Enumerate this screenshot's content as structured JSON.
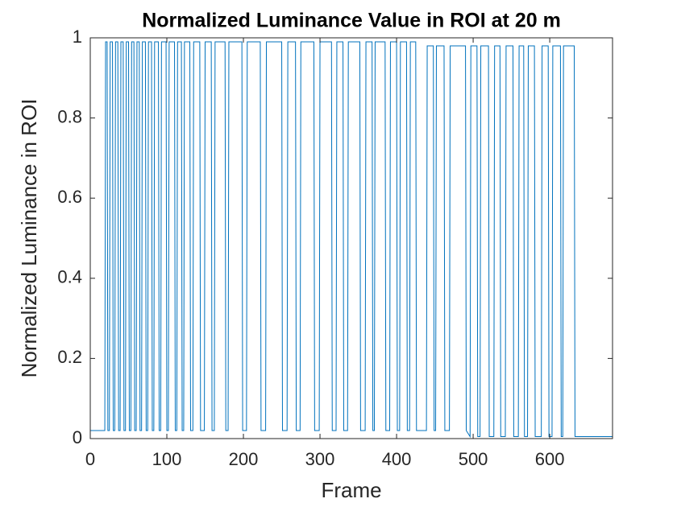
{
  "chart_data": {
    "type": "line",
    "title": "Normalized Luminance Value in ROI  at 20 m",
    "x_label": "Frame",
    "y_label": "Normalized Luminance in ROI",
    "xlim": [
      0,
      682
    ],
    "ylim": [
      0,
      1
    ],
    "xticks": [
      0,
      100,
      200,
      300,
      400,
      500,
      600
    ],
    "yticks": [
      0,
      0.2,
      0.4,
      0.6,
      0.8,
      1
    ],
    "grid": false,
    "series": [
      {
        "color": "#0072BD",
        "x": [
          0,
          19,
          20,
          22,
          23,
          25,
          26,
          29,
          30,
          32,
          33,
          36,
          37,
          39,
          40,
          43,
          44,
          46,
          47,
          50,
          51,
          53,
          54,
          57,
          58,
          60,
          61,
          64,
          65,
          67,
          68,
          72,
          73,
          75,
          76,
          80,
          81,
          83,
          84,
          89,
          90,
          92,
          93,
          99,
          100,
          102,
          103,
          110,
          111,
          113,
          114,
          119,
          120,
          122,
          123,
          130,
          131,
          134,
          135,
          143,
          144,
          149,
          150,
          158,
          159,
          162,
          163,
          176,
          177,
          180,
          181,
          198,
          199,
          204,
          205,
          222,
          223,
          229,
          230,
          250,
          251,
          257,
          258,
          268,
          269,
          274,
          275,
          292,
          293,
          299,
          300,
          315,
          316,
          321,
          322,
          330,
          331,
          336,
          337,
          352,
          353,
          359,
          360,
          368,
          369,
          371,
          372,
          385,
          386,
          391,
          392,
          400,
          401,
          404,
          405,
          413,
          414,
          417,
          418,
          425,
          426,
          439,
          440,
          448,
          449,
          451,
          452,
          462,
          463,
          469,
          470,
          490,
          491,
          496,
          497,
          505,
          506,
          509,
          510,
          520,
          521,
          527,
          528,
          535,
          536,
          542,
          543,
          552,
          553,
          559,
          560,
          566,
          567,
          571,
          572,
          580,
          581,
          589,
          590,
          598,
          599,
          603,
          604,
          614,
          615,
          617,
          618,
          632,
          633,
          682
        ],
        "values": [
          0.02,
          0.02,
          0.99,
          0.99,
          0.02,
          0.02,
          0.99,
          0.99,
          0.02,
          0.02,
          0.99,
          0.99,
          0.02,
          0.02,
          0.99,
          0.99,
          0.02,
          0.02,
          0.99,
          0.99,
          0.02,
          0.02,
          0.99,
          0.99,
          0.02,
          0.02,
          0.99,
          0.99,
          0.02,
          0.02,
          0.99,
          0.99,
          0.02,
          0.02,
          0.99,
          0.99,
          0.02,
          0.02,
          0.99,
          0.99,
          0.02,
          0.02,
          0.99,
          0.99,
          0.02,
          0.02,
          0.99,
          0.99,
          0.02,
          0.02,
          0.99,
          0.99,
          0.02,
          0.02,
          0.99,
          0.99,
          0.02,
          0.02,
          0.99,
          0.99,
          0.02,
          0.02,
          0.99,
          0.99,
          0.02,
          0.02,
          0.99,
          0.99,
          0.02,
          0.02,
          0.99,
          0.99,
          0.02,
          0.02,
          0.99,
          0.99,
          0.02,
          0.02,
          0.99,
          0.99,
          0.02,
          0.02,
          0.99,
          0.99,
          0.02,
          0.02,
          0.99,
          0.99,
          0.02,
          0.02,
          0.99,
          0.99,
          0.02,
          0.02,
          0.99,
          0.99,
          0.02,
          0.02,
          0.99,
          0.99,
          0.02,
          0.02,
          0.99,
          0.99,
          0.02,
          0.02,
          0.99,
          0.99,
          0.02,
          0.02,
          0.99,
          0.99,
          0.02,
          0.02,
          0.99,
          0.99,
          0.02,
          0.02,
          0.99,
          0.99,
          0.02,
          0.02,
          0.98,
          0.98,
          0.02,
          0.02,
          0.98,
          0.98,
          0.02,
          0.02,
          0.98,
          0.98,
          0.02,
          0.005,
          0.98,
          0.98,
          0.005,
          0.005,
          0.98,
          0.98,
          0.005,
          0.005,
          0.98,
          0.98,
          0.005,
          0.005,
          0.98,
          0.98,
          0.005,
          0.005,
          0.98,
          0.98,
          0.005,
          0.005,
          0.98,
          0.98,
          0.005,
          0.005,
          0.98,
          0.98,
          0.005,
          0.005,
          0.98,
          0.98,
          0.005,
          0.005,
          0.98,
          0.98,
          0.005,
          0.005
        ]
      }
    ]
  }
}
